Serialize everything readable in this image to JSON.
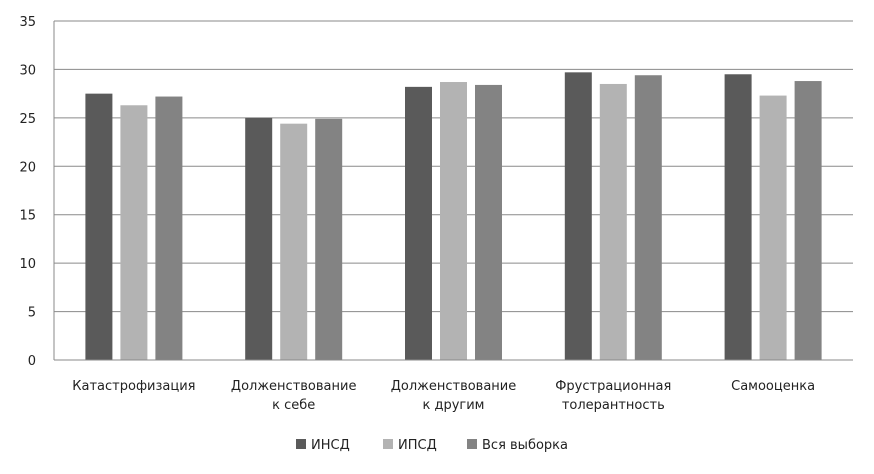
{
  "chart_data": {
    "type": "bar",
    "categories": [
      [
        "Катастрофизация"
      ],
      [
        "Долженствование",
        "к себе"
      ],
      [
        "Долженствование",
        "к другим"
      ],
      [
        "Фрустрационная",
        "толерантность"
      ],
      [
        "Самооценка"
      ]
    ],
    "series": [
      {
        "name": "ИНСД",
        "color": "#5a5a5a",
        "values": [
          27.5,
          25.0,
          28.2,
          29.7,
          29.5
        ]
      },
      {
        "name": "ИПСД",
        "color": "#b3b3b3",
        "values": [
          26.3,
          24.4,
          28.7,
          28.5,
          27.3
        ]
      },
      {
        "name": "Вся выборка",
        "color": "#838383",
        "values": [
          27.2,
          24.9,
          28.4,
          29.4,
          28.8
        ]
      }
    ],
    "ylim": [
      0,
      35
    ],
    "yticks": [
      0,
      5,
      10,
      15,
      20,
      25,
      30,
      35
    ],
    "grid": true,
    "legend": "bottom"
  }
}
